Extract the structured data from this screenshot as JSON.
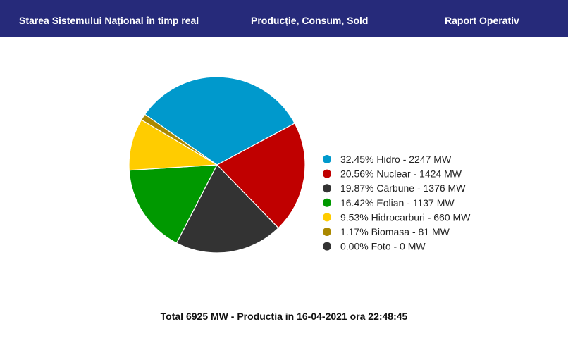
{
  "nav": {
    "items": [
      {
        "label": "Starea Sistemului Național în timp real"
      },
      {
        "label": "Producție, Consum, Sold"
      },
      {
        "label": "Raport Operativ"
      }
    ],
    "background": "#262a7a"
  },
  "chart_data": {
    "type": "pie",
    "slices": [
      {
        "label": "32.45% Hidro - 2247 MW",
        "name": "Hidro",
        "percent": 32.45,
        "value": 2247,
        "color": "#0099cc"
      },
      {
        "label": "20.56% Nuclear - 1424 MW",
        "name": "Nuclear",
        "percent": 20.56,
        "value": 1424,
        "color": "#c00000"
      },
      {
        "label": "19.87% Cărbune - 1376 MW",
        "name": "Cărbune",
        "percent": 19.87,
        "value": 1376,
        "color": "#333333"
      },
      {
        "label": "16.42% Eolian - 1137 MW",
        "name": "Eolian",
        "percent": 16.42,
        "value": 1137,
        "color": "#009900"
      },
      {
        "label": "9.53% Hidrocarburi - 660 MW",
        "name": "Hidrocarburi",
        "percent": 9.53,
        "value": 660,
        "color": "#ffcc00"
      },
      {
        "label": "1.17% Biomasa - 81 MW",
        "name": "Biomasa",
        "percent": 1.17,
        "value": 81,
        "color": "#aa8800"
      },
      {
        "label": "0.00% Foto - 0 MW",
        "name": "Foto",
        "percent": 0.0,
        "value": 0,
        "color": "#333333"
      }
    ],
    "legend_position": "right"
  },
  "footer": {
    "text": "Total 6925 MW - Productia in 16-04-2021 ora 22:48:45"
  }
}
